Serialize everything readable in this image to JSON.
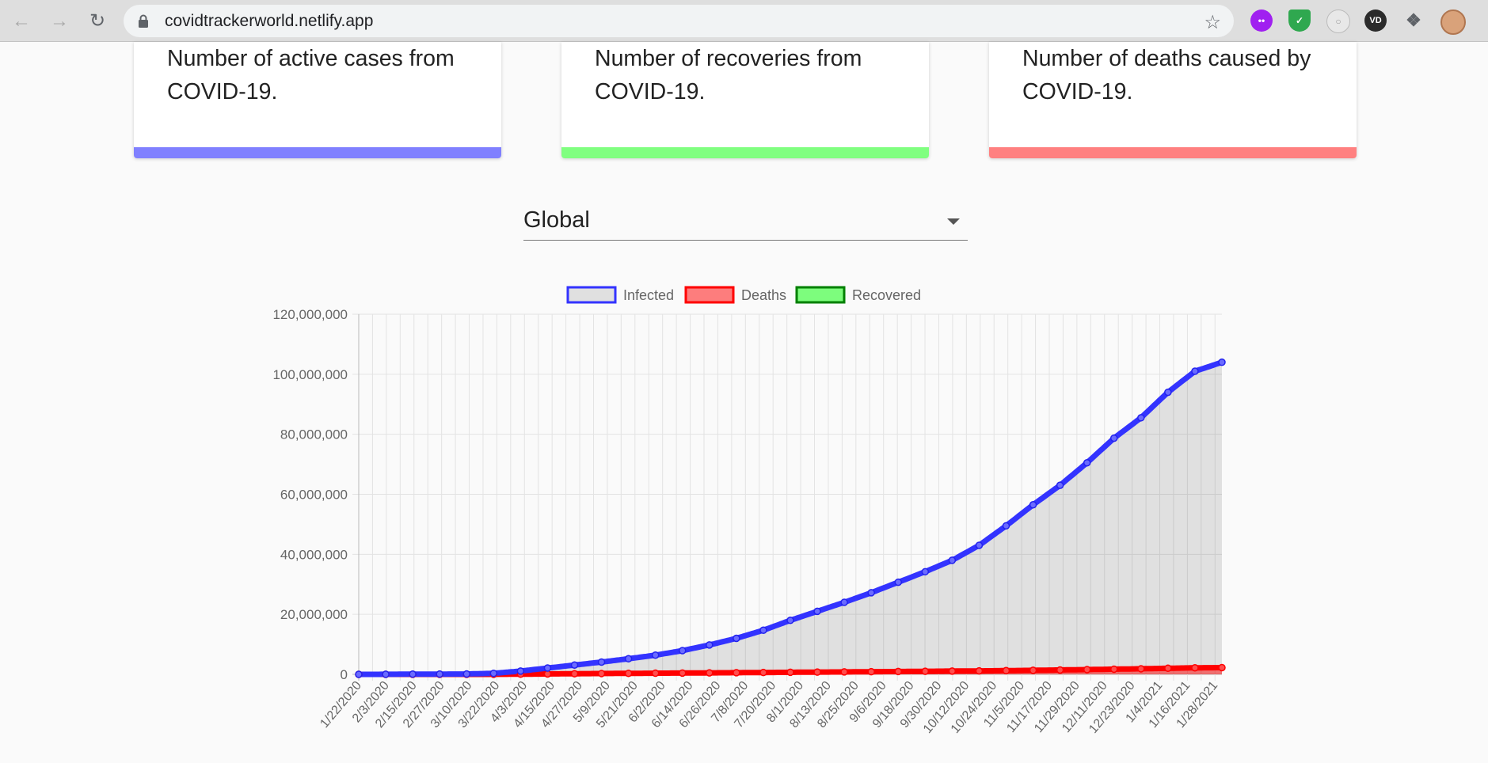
{
  "browser": {
    "url": "covidtrackerworld.netlify.app",
    "extensions": [
      "incognito-mask-icon",
      "shield-check-icon",
      "timer-icon",
      "vpn-icon",
      "puzzle-icon",
      "profile-avatar"
    ]
  },
  "cards": [
    {
      "text": "Number of active cases from COVID-19.",
      "color": "#8080ff"
    },
    {
      "text": "Number of recoveries from COVID-19.",
      "color": "#80ff80"
    },
    {
      "text": "Number of deaths caused by COVID-19.",
      "color": "#ff8080"
    }
  ],
  "country_select": {
    "value": "Global"
  },
  "chart_data": {
    "type": "line",
    "legend": [
      {
        "name": "Infected",
        "stroke": "#3333ff",
        "fill": "rgba(0,0,0,0.1)"
      },
      {
        "name": "Deaths",
        "stroke": "#ff0000",
        "fill": "rgba(255,0,0,0.5)"
      },
      {
        "name": "Recovered",
        "stroke": "#008000",
        "fill": "rgba(0,255,0,0.5)"
      }
    ],
    "ylim": [
      0,
      120000000
    ],
    "yticks": [
      "120,000,000",
      "100,000,000",
      "80,000,000",
      "60,000,000",
      "40,000,000",
      "20,000,000",
      "0"
    ],
    "xticks": [
      "1/22/2020",
      "2/3/2020",
      "2/15/2020",
      "2/27/2020",
      "3/10/2020",
      "3/22/2020",
      "4/3/2020",
      "4/15/2020",
      "4/27/2020",
      "5/9/2020",
      "5/21/2020",
      "6/2/2020",
      "6/14/2020",
      "6/26/2020",
      "7/8/2020",
      "7/20/2020",
      "8/1/2020",
      "8/13/2020",
      "8/25/2020",
      "9/6/2020",
      "9/18/2020",
      "9/30/2020",
      "10/12/2020",
      "10/24/2020",
      "11/5/2020",
      "11/17/2020",
      "11/29/2020",
      "12/11/2020",
      "12/23/2020",
      "1/4/2021",
      "1/16/2021",
      "1/28/2021"
    ],
    "series": [
      {
        "name": "Infected",
        "values": [
          555,
          16800,
          69000,
          83000,
          118000,
          337000,
          1100000,
          2100000,
          3100000,
          4100000,
          5200000,
          6400000,
          7900000,
          9800000,
          12000000,
          14700000,
          18000000,
          21000000,
          24000000,
          27200000,
          30700000,
          34200000,
          38000000,
          43000000,
          49500000,
          56500000,
          63000000,
          70500000,
          78700000,
          85500000,
          94000000,
          101000000,
          104000000
        ]
      },
      {
        "name": "Deaths",
        "values": [
          17,
          361,
          1526,
          2800,
          4300,
          14700,
          59000,
          133000,
          211000,
          278000,
          330000,
          381000,
          433000,
          497000,
          555000,
          613000,
          683000,
          750000,
          812000,
          876000,
          944000,
          1011000,
          1088000,
          1150000,
          1245000,
          1345000,
          1460000,
          1590000,
          1730000,
          1860000,
          2030000,
          2180000,
          2250000
        ]
      }
    ]
  }
}
